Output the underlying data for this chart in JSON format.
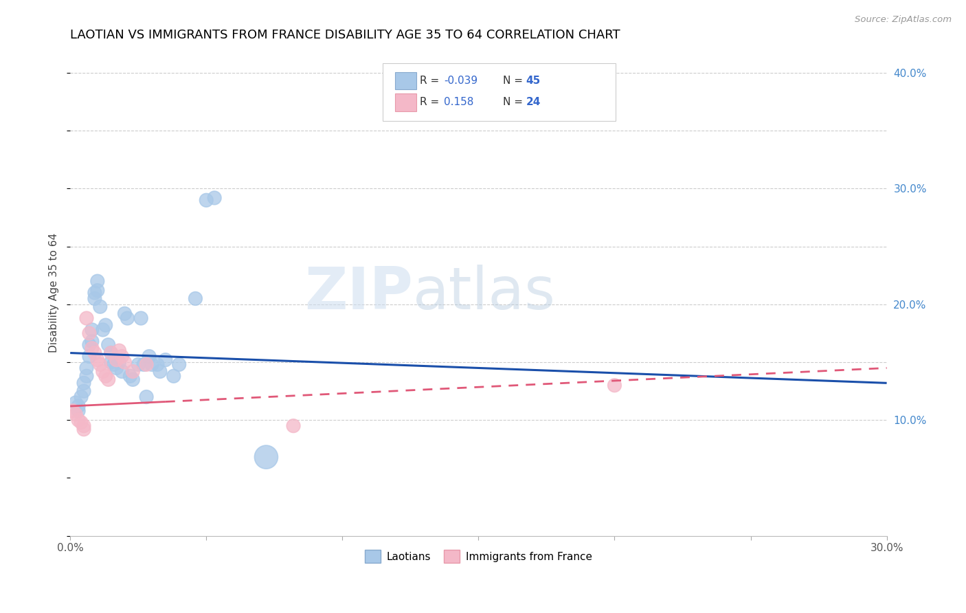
{
  "title": "LAOTIAN VS IMMIGRANTS FROM FRANCE DISABILITY AGE 35 TO 64 CORRELATION CHART",
  "source": "Source: ZipAtlas.com",
  "ylabel": "Disability Age 35 to 64",
  "xlim": [
    0.0,
    0.3
  ],
  "ylim": [
    0.0,
    0.42
  ],
  "laotian_color": "#a8c8e8",
  "france_color": "#f4b8c8",
  "laotian_line_color": "#1a4faa",
  "france_line_color": "#e05878",
  "watermark_zip": "ZIP",
  "watermark_atlas": "atlas",
  "laotian_points": [
    [
      0.002,
      0.115
    ],
    [
      0.003,
      0.112
    ],
    [
      0.003,
      0.108
    ],
    [
      0.004,
      0.12
    ],
    [
      0.005,
      0.125
    ],
    [
      0.005,
      0.132
    ],
    [
      0.006,
      0.138
    ],
    [
      0.006,
      0.145
    ],
    [
      0.007,
      0.165
    ],
    [
      0.007,
      0.155
    ],
    [
      0.008,
      0.168
    ],
    [
      0.008,
      0.178
    ],
    [
      0.009,
      0.205
    ],
    [
      0.009,
      0.21
    ],
    [
      0.01,
      0.22
    ],
    [
      0.01,
      0.212
    ],
    [
      0.011,
      0.198
    ],
    [
      0.012,
      0.178
    ],
    [
      0.013,
      0.182
    ],
    [
      0.014,
      0.165
    ],
    [
      0.015,
      0.158
    ],
    [
      0.015,
      0.15
    ],
    [
      0.016,
      0.148
    ],
    [
      0.017,
      0.145
    ],
    [
      0.018,
      0.15
    ],
    [
      0.019,
      0.142
    ],
    [
      0.02,
      0.192
    ],
    [
      0.021,
      0.188
    ],
    [
      0.022,
      0.138
    ],
    [
      0.023,
      0.135
    ],
    [
      0.025,
      0.148
    ],
    [
      0.026,
      0.188
    ],
    [
      0.027,
      0.148
    ],
    [
      0.028,
      0.12
    ],
    [
      0.029,
      0.155
    ],
    [
      0.03,
      0.148
    ],
    [
      0.032,
      0.148
    ],
    [
      0.033,
      0.142
    ],
    [
      0.035,
      0.152
    ],
    [
      0.038,
      0.138
    ],
    [
      0.04,
      0.148
    ],
    [
      0.046,
      0.205
    ],
    [
      0.05,
      0.29
    ],
    [
      0.053,
      0.292
    ],
    [
      0.072,
      0.068
    ]
  ],
  "france_points": [
    [
      0.001,
      0.108
    ],
    [
      0.002,
      0.105
    ],
    [
      0.003,
      0.1
    ],
    [
      0.004,
      0.098
    ],
    [
      0.005,
      0.095
    ],
    [
      0.005,
      0.092
    ],
    [
      0.006,
      0.188
    ],
    [
      0.007,
      0.175
    ],
    [
      0.008,
      0.162
    ],
    [
      0.009,
      0.158
    ],
    [
      0.01,
      0.152
    ],
    [
      0.011,
      0.148
    ],
    [
      0.012,
      0.142
    ],
    [
      0.013,
      0.138
    ],
    [
      0.014,
      0.135
    ],
    [
      0.015,
      0.158
    ],
    [
      0.017,
      0.152
    ],
    [
      0.018,
      0.16
    ],
    [
      0.019,
      0.155
    ],
    [
      0.02,
      0.15
    ],
    [
      0.023,
      0.142
    ],
    [
      0.028,
      0.148
    ],
    [
      0.082,
      0.095
    ],
    [
      0.2,
      0.13
    ]
  ],
  "laotian_sizes": [
    200,
    200,
    200,
    200,
    200,
    200,
    200,
    200,
    200,
    200,
    200,
    200,
    200,
    200,
    200,
    200,
    200,
    200,
    200,
    200,
    200,
    200,
    200,
    200,
    200,
    200,
    200,
    200,
    200,
    200,
    200,
    200,
    200,
    200,
    200,
    200,
    200,
    200,
    200,
    200,
    200,
    200,
    200,
    200,
    600
  ],
  "france_sizes": [
    200,
    200,
    200,
    200,
    200,
    200,
    200,
    200,
    200,
    200,
    200,
    200,
    200,
    200,
    200,
    200,
    200,
    200,
    200,
    200,
    200,
    200,
    200,
    200
  ],
  "laotian_line_start_y": 0.158,
  "laotian_line_end_y": 0.132,
  "france_line_start_y": 0.112,
  "france_line_end_y": 0.145,
  "france_line_solid_end": 0.035,
  "legend_r_blue": "-0.039",
  "legend_n_blue": "45",
  "legend_r_pink": "0.158",
  "legend_n_pink": "24"
}
